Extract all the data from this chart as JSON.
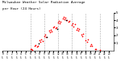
{
  "title": "Milwaukee Weather Solar Radiation Average",
  "subtitle": "per Hour (24 Hours)",
  "dot_color": "#ff0000",
  "black_dot_color": "#000000",
  "bg_color": "#ffffff",
  "grid_color": "#aaaaaa",
  "ylim": [
    0,
    500
  ],
  "ytick_values": [
    100,
    200,
    300,
    400,
    500
  ],
  "ytick_labels": [
    "1",
    "2",
    "3",
    "4",
    "5"
  ],
  "grid_x_positions": [
    6,
    9,
    12,
    15,
    18,
    21
  ],
  "scatter_data": [
    [
      6.1,
      15
    ],
    [
      6.3,
      20
    ],
    [
      6.5,
      10
    ],
    [
      7.0,
      55
    ],
    [
      7.2,
      70
    ],
    [
      7.4,
      45
    ],
    [
      7.6,
      60
    ],
    [
      8.0,
      130
    ],
    [
      8.2,
      110
    ],
    [
      8.4,
      150
    ],
    [
      8.6,
      120
    ],
    [
      9.0,
      190
    ],
    [
      9.2,
      210
    ],
    [
      9.4,
      180
    ],
    [
      10.0,
      260
    ],
    [
      10.2,
      240
    ],
    [
      10.4,
      270
    ],
    [
      10.6,
      250
    ],
    [
      11.0,
      300
    ],
    [
      11.2,
      320
    ],
    [
      11.4,
      290
    ],
    [
      11.6,
      310
    ],
    [
      12.0,
      370
    ],
    [
      12.2,
      390
    ],
    [
      12.4,
      360
    ],
    [
      12.6,
      380
    ],
    [
      13.0,
      420
    ],
    [
      13.2,
      440
    ],
    [
      13.4,
      410
    ],
    [
      13.6,
      430
    ],
    [
      14.0,
      400
    ],
    [
      14.2,
      380
    ],
    [
      14.4,
      390
    ],
    [
      15.0,
      340
    ],
    [
      15.2,
      360
    ],
    [
      15.4,
      320
    ],
    [
      15.6,
      350
    ],
    [
      16.0,
      270
    ],
    [
      16.2,
      290
    ],
    [
      16.4,
      260
    ],
    [
      16.6,
      280
    ],
    [
      17.0,
      210
    ],
    [
      17.2,
      190
    ],
    [
      17.4,
      220
    ],
    [
      18.0,
      130
    ],
    [
      18.2,
      110
    ],
    [
      18.4,
      140
    ],
    [
      19.0,
      60
    ],
    [
      19.2,
      80
    ],
    [
      19.4,
      55
    ],
    [
      20.0,
      20
    ],
    [
      20.2,
      15
    ],
    [
      21.0,
      5
    ]
  ],
  "black_dots": [
    [
      7.8,
      90
    ],
    [
      9.6,
      175
    ],
    [
      11.8,
      280
    ],
    [
      13.8,
      400
    ]
  ],
  "xlim": [
    0,
    24
  ],
  "xtick_positions": [
    0,
    1,
    2,
    3,
    4,
    5,
    6,
    7,
    8,
    9,
    10,
    11,
    12,
    13,
    14,
    15,
    16,
    17,
    18,
    19,
    20,
    21,
    22,
    23
  ],
  "xtick_row1": [
    "0",
    "1",
    "2",
    "3",
    "4",
    "5",
    "6",
    "7",
    "8",
    "9",
    "10",
    "11",
    "12",
    "13",
    "14",
    "15",
    "16",
    "17",
    "18",
    "19",
    "20",
    "21",
    "22",
    "23"
  ],
  "xtick_row2": [
    "5",
    "5",
    "5",
    "5",
    "5",
    "5",
    "5",
    "5",
    "5",
    "5",
    "5",
    "5",
    "5",
    "5",
    "5",
    "5",
    "5",
    "5",
    "5",
    "5",
    "5",
    "5",
    "5",
    "5"
  ]
}
